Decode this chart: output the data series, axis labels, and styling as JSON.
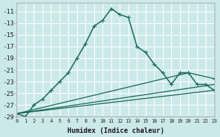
{
  "xlabel": "Humidex (Indice chaleur)",
  "bg_color": "#cce9e9",
  "grid_color": "#ffffff",
  "line_color": "#1a6b5a",
  "x_min": 0,
  "x_max": 23,
  "y_min": -29,
  "y_max": -10,
  "yticks": [
    -11,
    -13,
    -15,
    -17,
    -19,
    -21,
    -23,
    -25,
    -27,
    -29
  ],
  "xticks": [
    0,
    1,
    2,
    3,
    4,
    5,
    6,
    7,
    8,
    9,
    10,
    11,
    12,
    13,
    14,
    15,
    16,
    17,
    18,
    19,
    20,
    21,
    22,
    23
  ],
  "series": [
    {
      "x": [
        0,
        1,
        2,
        3,
        4,
        5,
        6,
        7,
        8,
        9,
        10,
        11,
        12,
        13,
        14,
        15,
        16,
        17,
        18,
        19,
        20,
        21,
        22,
        23
      ],
      "y": [
        -28.5,
        -29,
        -27,
        -26.0,
        -24.5,
        -23.0,
        -21.5,
        -19.0,
        -16.5,
        -13.5,
        -12.5,
        -10.5,
        -11.5,
        -12.0,
        -17.0,
        -18.0,
        -20.0,
        -21.5,
        -23.5,
        -21.5,
        -21.5,
        -23.5,
        -23.5,
        -24.5
      ],
      "marker": "+",
      "lw": 1.2,
      "ms": 4
    },
    {
      "x": [
        0,
        23
      ],
      "y": [
        -28.5,
        -24.5
      ],
      "marker": null,
      "lw": 1.0,
      "ms": 0
    },
    {
      "x": [
        0,
        23
      ],
      "y": [
        -28.5,
        -23.5
      ],
      "marker": null,
      "lw": 1.0,
      "ms": 0
    },
    {
      "x": [
        0,
        20,
        23
      ],
      "y": [
        -28.5,
        -21.5,
        -22.5
      ],
      "marker": "+",
      "lw": 1.0,
      "ms": 4
    }
  ]
}
